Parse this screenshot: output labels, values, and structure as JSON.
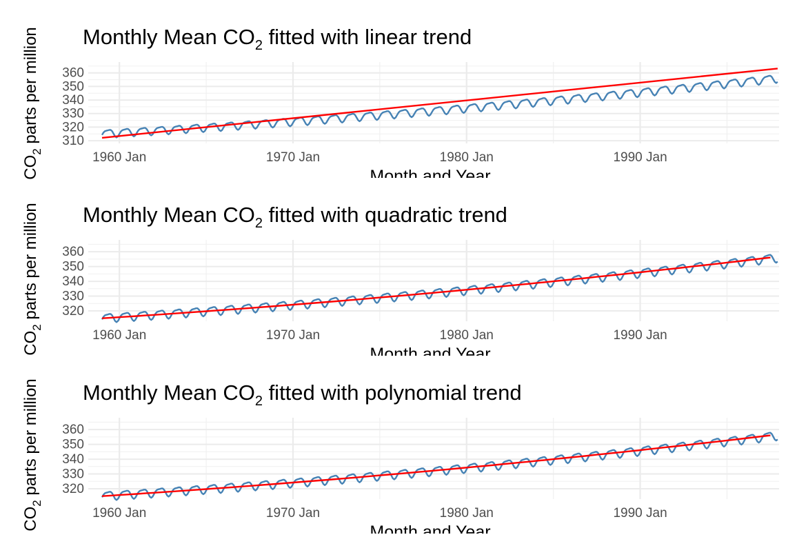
{
  "chart_data": [
    {
      "type": "line",
      "title": "Monthly Mean CO2 fitted with linear trend",
      "title_parts": [
        "Monthly Mean CO",
        "2",
        " fitted with linear trend"
      ],
      "xlabel": "Month and Year",
      "ylabel_parts": [
        "CO",
        "2",
        " parts per million"
      ],
      "xlim": [
        1959.0,
        1998.0
      ],
      "ylim": [
        308,
        368
      ],
      "yticks": [
        310,
        320,
        330,
        340,
        350,
        360
      ],
      "xticks": [
        1960,
        1970,
        1980,
        1990
      ],
      "xtick_labels": [
        "1960 Jan",
        "1970 Jan",
        "1980 Jan",
        "1990 Jan"
      ],
      "grid": true,
      "series": [
        {
          "role": "observed",
          "color": "#4682B4",
          "x_start": 1959.0,
          "x_end": 1997.9167,
          "step": 0.08333,
          "trend": [
            315.4,
            0.72,
            0.0085
          ],
          "seasonal_amplitude": 2.8
        },
        {
          "role": "fitted",
          "color": "#FF0000",
          "x": [
            1959.0,
            1997.9167
          ],
          "y": [
            312.1,
            363.2
          ]
        }
      ]
    },
    {
      "type": "line",
      "title": "Monthly Mean CO2 fitted with quadratic trend",
      "title_parts": [
        "Monthly Mean CO",
        "2",
        " fitted with quadratic trend"
      ],
      "xlabel": "Month and Year",
      "ylabel_parts": [
        "CO",
        "2",
        " parts per million"
      ],
      "xlim": [
        1959.0,
        1998.0
      ],
      "ylim": [
        313,
        368
      ],
      "yticks": [
        320,
        330,
        340,
        350,
        360
      ],
      "xticks": [
        1960,
        1970,
        1980,
        1990
      ],
      "xtick_labels": [
        "1960 Jan",
        "1970 Jan",
        "1980 Jan",
        "1990 Jan"
      ],
      "grid": true,
      "series": [
        {
          "role": "observed",
          "color": "#4682B4",
          "x_start": 1959.0,
          "x_end": 1997.9167,
          "step": 0.08333,
          "trend": [
            315.4,
            0.72,
            0.0085
          ],
          "seasonal_amplitude": 2.8
        },
        {
          "role": "fitted",
          "color": "#FF0000",
          "quadratic": [
            315.0,
            0.74,
            0.0085
          ]
        }
      ]
    },
    {
      "type": "line",
      "title": "Monthly Mean CO2 fitted with polynomial trend",
      "title_parts": [
        "Monthly Mean CO",
        "2",
        " fitted with polynomial trend"
      ],
      "xlabel": "Month and Year",
      "ylabel_parts": [
        "CO",
        "2",
        " parts per million"
      ],
      "xlim": [
        1959.0,
        1998.0
      ],
      "ylim": [
        313,
        368
      ],
      "yticks": [
        320,
        330,
        340,
        350,
        360
      ],
      "xticks": [
        1960,
        1970,
        1980,
        1990
      ],
      "xtick_labels": [
        "1960 Jan",
        "1970 Jan",
        "1980 Jan",
        "1990 Jan"
      ],
      "grid": true,
      "series": [
        {
          "role": "observed",
          "color": "#4682B4",
          "x_start": 1959.0,
          "x_end": 1997.9167,
          "step": 0.08333,
          "trend": [
            315.4,
            0.72,
            0.0085
          ],
          "seasonal_amplitude": 2.8
        },
        {
          "role": "fitted",
          "color": "#FF0000",
          "quadratic": [
            315.0,
            0.74,
            0.0085
          ]
        }
      ]
    }
  ]
}
